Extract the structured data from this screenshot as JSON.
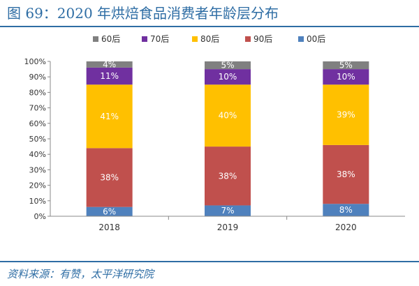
{
  "figure": {
    "title": "图 69：2020 年烘焙食品消费者年龄层分布",
    "source": "资料来源：有赞，太平洋研究院"
  },
  "chart_data": {
    "type": "bar",
    "stacked": true,
    "categories": [
      "2018",
      "2019",
      "2020"
    ],
    "series": [
      {
        "name": "00后",
        "color": "#4f81bd",
        "values": [
          6,
          7,
          8
        ],
        "labels": [
          "6%",
          "7%",
          "8%"
        ]
      },
      {
        "name": "90后",
        "color": "#c0504d",
        "values": [
          38,
          38,
          38
        ],
        "labels": [
          "38%",
          "38%",
          "38%"
        ]
      },
      {
        "name": "80后",
        "color": "#ffc000",
        "values": [
          41,
          40,
          39
        ],
        "labels": [
          "41%",
          "40%",
          "39%"
        ]
      },
      {
        "name": "70后",
        "color": "#7030a0",
        "values": [
          11,
          10,
          10
        ],
        "labels": [
          "11%",
          "10%",
          "10%"
        ]
      },
      {
        "name": "60后",
        "color": "#808080",
        "values": [
          4,
          5,
          5
        ],
        "labels": [
          "4%",
          "5%",
          "5%"
        ]
      }
    ],
    "legend_order": [
      "60后",
      "70后",
      "80后",
      "90后",
      "00后"
    ],
    "y_ticks": [
      "0%",
      "10%",
      "20%",
      "30%",
      "40%",
      "50%",
      "60%",
      "70%",
      "80%",
      "90%",
      "100%"
    ],
    "ylim": [
      0,
      100
    ],
    "grid": false,
    "legend_position": "top"
  }
}
